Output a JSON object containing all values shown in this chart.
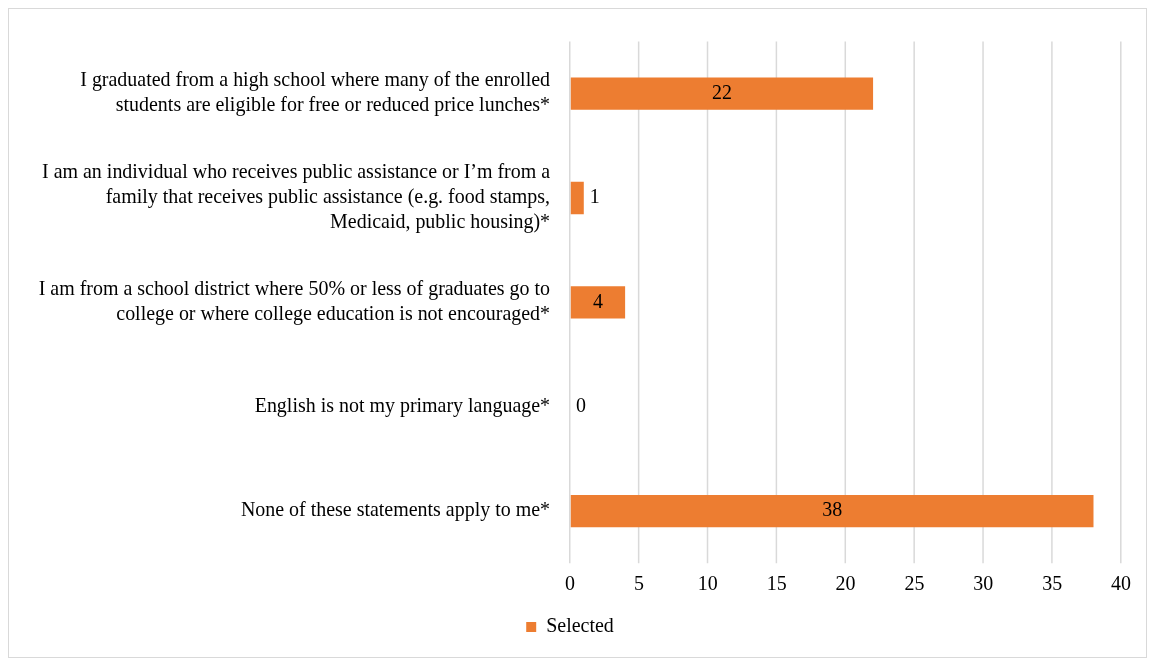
{
  "chart_data": {
    "type": "bar",
    "orientation": "horizontal",
    "categories": [
      "I graduated from a high school where many of the enrolled students are eligible for free or reduced price lunches*",
      "I am an individual who receives public assistance or I’m from a family that receives public assistance (e.g. food stamps, Medicaid, public housing)*",
      "I am from a school district where 50% or less of graduates go to college or where college education is not encouraged*",
      "English is not my primary language*",
      "None of these statements apply to me*"
    ],
    "series": [
      {
        "name": "Selected",
        "color": "#ed7d31",
        "values": [
          22,
          1,
          4,
          0,
          38
        ]
      }
    ],
    "xlim": [
      0,
      40
    ],
    "xticks": [
      0,
      5,
      10,
      15,
      20,
      25,
      30,
      35,
      40
    ],
    "grid": "x",
    "legend": "bottom",
    "data_labels": true
  }
}
